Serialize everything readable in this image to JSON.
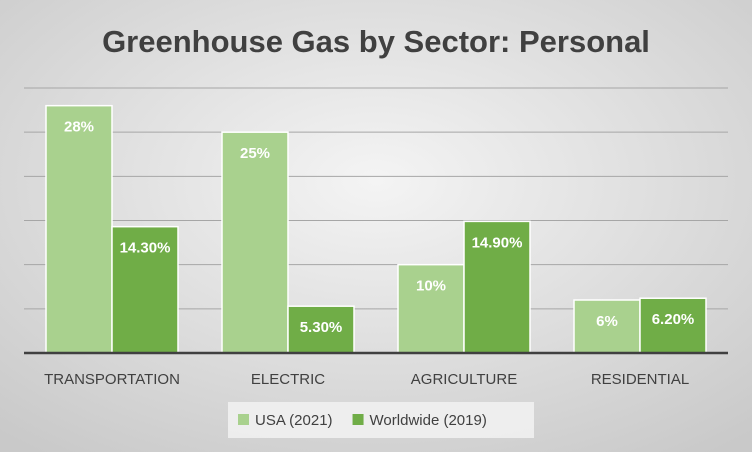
{
  "chart_data": {
    "type": "bar",
    "title": "Greenhouse Gas by Sector: Personal",
    "categories": [
      "TRANSPORTATION",
      "ELECTRIC",
      "AGRICULTURE",
      "RESIDENTIAL"
    ],
    "series": [
      {
        "name": "USA (2021)",
        "color": "#a9d18e",
        "values": [
          28,
          25,
          10,
          6
        ],
        "value_labels": [
          "28%",
          "25%",
          "10%",
          "6%"
        ]
      },
      {
        "name": "Worldwide (2019)",
        "color": "#70ad47",
        "values": [
          14.3,
          5.3,
          14.9,
          6.2
        ],
        "value_labels": [
          "14.30%",
          "5.30%",
          "14.90%",
          "6.20%"
        ]
      }
    ],
    "ylim": [
      0,
      30
    ],
    "yticks": [
      0,
      5,
      10,
      15,
      20,
      25,
      30
    ],
    "grid": true,
    "legend": "bottom"
  }
}
